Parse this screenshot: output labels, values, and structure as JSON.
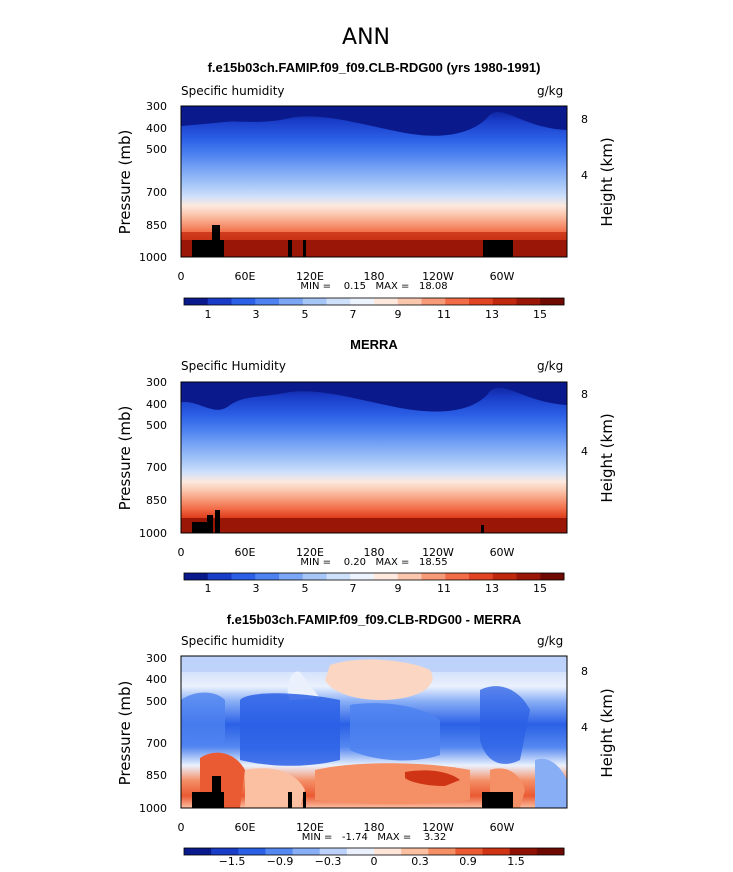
{
  "figure": {
    "title": "ANN"
  },
  "chart_data": [
    {
      "type": "heatmap",
      "title": "f.e15b03ch.FAMIP.f09_f09.CLB-RDG00 (yrs 1980-1991)",
      "left_label": "Specific humidity",
      "units": "g/kg",
      "ylabel": "Pressure (mb)",
      "ylabel_right": "Height (km)",
      "pressure_ticks": [
        "300",
        "400",
        "500",
        "700",
        "850",
        "1000"
      ],
      "height_ticks": [
        "8",
        "4"
      ],
      "lon_ticks": [
        "0",
        "60E",
        "120E",
        "180",
        "120W",
        "60W"
      ],
      "stats": "MIN =    0.15   MAX =   18.08",
      "levels": [
        1,
        2,
        3,
        4,
        5,
        6,
        7,
        8,
        9,
        10,
        11,
        12,
        13,
        14,
        15,
        16
      ],
      "colorbar_labels": [
        "1",
        "3",
        "5",
        "7",
        "9",
        "11",
        "13",
        "15"
      ],
      "min": 0.15,
      "max": 18.08
    },
    {
      "type": "heatmap",
      "title": "MERRA",
      "left_label": "Specific Humidity",
      "units": "g/kg",
      "ylabel": "Pressure (mb)",
      "ylabel_right": "Height (km)",
      "pressure_ticks": [
        "300",
        "400",
        "500",
        "700",
        "850",
        "1000"
      ],
      "height_ticks": [
        "8",
        "4"
      ],
      "lon_ticks": [
        "0",
        "60E",
        "120E",
        "180",
        "120W",
        "60W"
      ],
      "stats": "MIN =    0.20   MAX =   18.55",
      "levels": [
        1,
        2,
        3,
        4,
        5,
        6,
        7,
        8,
        9,
        10,
        11,
        12,
        13,
        14,
        15,
        16
      ],
      "colorbar_labels": [
        "1",
        "3",
        "5",
        "7",
        "9",
        "11",
        "13",
        "15"
      ],
      "min": 0.2,
      "max": 18.55
    },
    {
      "type": "heatmap",
      "title": "f.e15b03ch.FAMIP.f09_f09.CLB-RDG00 - MERRA",
      "left_label": "Specific humidity",
      "units": "g/kg",
      "ylabel": "Pressure (mb)",
      "ylabel_right": "Height (km)",
      "pressure_ticks": [
        "300",
        "400",
        "500",
        "700",
        "850",
        "1000"
      ],
      "height_ticks": [
        "8",
        "4"
      ],
      "lon_ticks": [
        "0",
        "60E",
        "120E",
        "180",
        "120W",
        "60W"
      ],
      "stats": "MIN =   -1.74   MAX =    3.32",
      "levels": [
        -1.8,
        -1.5,
        -1.2,
        -0.9,
        -0.6,
        -0.3,
        0,
        0.3,
        0.6,
        0.9,
        1.2,
        1.5,
        1.8
      ],
      "colorbar_labels": [
        "−1.5",
        "−0.9",
        "−0.3",
        "0",
        "0.3",
        "0.9",
        "1.5"
      ],
      "min": -1.74,
      "max": 3.32
    }
  ],
  "colors": {
    "palette16": [
      "#0a1a8c",
      "#1a3dc8",
      "#2b60e6",
      "#4d82f0",
      "#7aa6f5",
      "#a6c6f8",
      "#cfe0fb",
      "#eef4fd",
      "#fde9de",
      "#fbc6ae",
      "#f79a78",
      "#f16c47",
      "#e04422",
      "#c0280e",
      "#9a1606",
      "#6e0a02"
    ],
    "palette_diff": [
      "#0a1a8c",
      "#1a3dc8",
      "#2b60e6",
      "#5588f0",
      "#88aef6",
      "#bcd2fa",
      "#eaf1fd",
      "#fde5d8",
      "#fbbfa2",
      "#f48f66",
      "#ea5a33",
      "#cf3515",
      "#8e1104",
      "#6e0a02"
    ]
  }
}
